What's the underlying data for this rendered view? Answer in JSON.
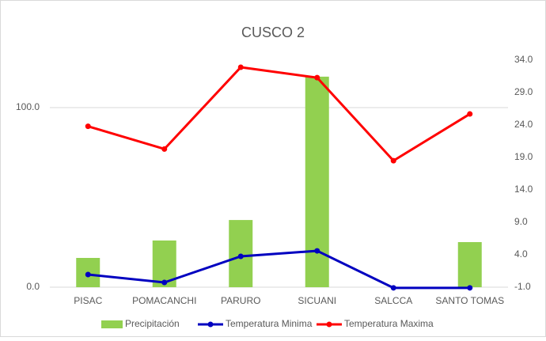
{
  "chart_data": {
    "type": "bar-line",
    "title": "CUSCO 2",
    "categories": [
      "PISAC",
      "POMACANCHI",
      "PARURO",
      "SICUANI",
      "SALCCA",
      "SANTO TOMAS"
    ],
    "series": [
      {
        "name": "Precipitación",
        "color": "#92d050",
        "type": "bar",
        "values": [
          16.3,
          26,
          37.4,
          117.2,
          0,
          25.1
        ]
      },
      {
        "name": "Temperatura Minima",
        "color": "#0000c0",
        "type": "line",
        "axis": "y2",
        "values": [
          0.95,
          -0.27,
          3.76,
          4.6,
          -1.1,
          -1.1
        ]
      },
      {
        "name": "Temperatura Maxima",
        "color": "#ff0000",
        "type": "line",
        "axis": "y2",
        "values": [
          23.8,
          20.3,
          32.9,
          31.3,
          18.5,
          25.7
        ]
      }
    ],
    "ylim": [
      0,
      126.4
    ],
    "yticks": [
      {
        "value": 0,
        "label": "0.0"
      },
      {
        "value": 100,
        "label": "100.0"
      }
    ],
    "y2lim": [
      -1,
      34
    ],
    "y2ticks": [
      {
        "value": -1,
        "label": "-1.0"
      },
      {
        "value": 4,
        "label": "4.0"
      },
      {
        "value": 9,
        "label": "9.0"
      },
      {
        "value": 14,
        "label": "14.0"
      },
      {
        "value": 19,
        "label": "19.0"
      },
      {
        "value": 24,
        "label": "24.0"
      },
      {
        "value": 29,
        "label": "29.0"
      },
      {
        "value": 34,
        "label": "34.0"
      }
    ],
    "grid": true,
    "legend": "bottom"
  }
}
